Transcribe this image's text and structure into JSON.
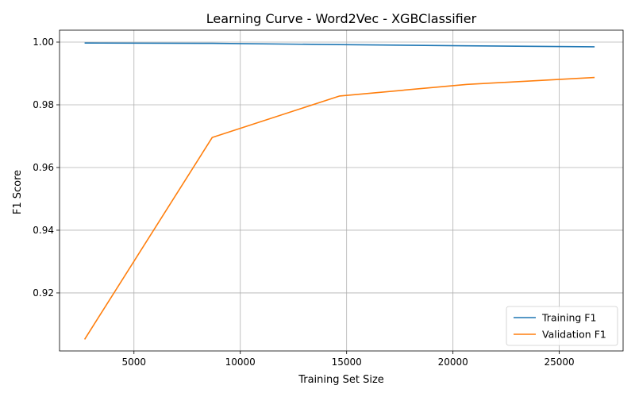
{
  "chart_data": {
    "type": "line",
    "title": "Learning Curve - Word2Vec - XGBClassifier",
    "xlabel": "Training Set Size",
    "ylabel": "F1 Score",
    "xlim": [
      1500,
      28000
    ],
    "ylim": [
      0.9015,
      1.0038
    ],
    "xticks": [
      5000,
      10000,
      15000,
      20000,
      25000
    ],
    "yticks": [
      0.92,
      0.94,
      0.96,
      0.98,
      1.0
    ],
    "xtick_labels": [
      "5000",
      "10000",
      "15000",
      "20000",
      "25000"
    ],
    "ytick_labels": [
      "0.92",
      "0.94",
      "0.96",
      "0.98",
      "1.00"
    ],
    "grid": true,
    "legend_position": "lower-right",
    "series": [
      {
        "name": "Training F1",
        "color": "#1f77b4",
        "x": [
          2680,
          8680,
          14670,
          20660,
          26660
        ],
        "y": [
          0.9997,
          0.9996,
          0.9992,
          0.9988,
          0.9985
        ]
      },
      {
        "name": "Validation F1",
        "color": "#ff7f0e",
        "x": [
          2680,
          8680,
          14670,
          20660,
          26660
        ],
        "y": [
          0.9052,
          0.9696,
          0.9828,
          0.9865,
          0.9887
        ]
      }
    ]
  }
}
